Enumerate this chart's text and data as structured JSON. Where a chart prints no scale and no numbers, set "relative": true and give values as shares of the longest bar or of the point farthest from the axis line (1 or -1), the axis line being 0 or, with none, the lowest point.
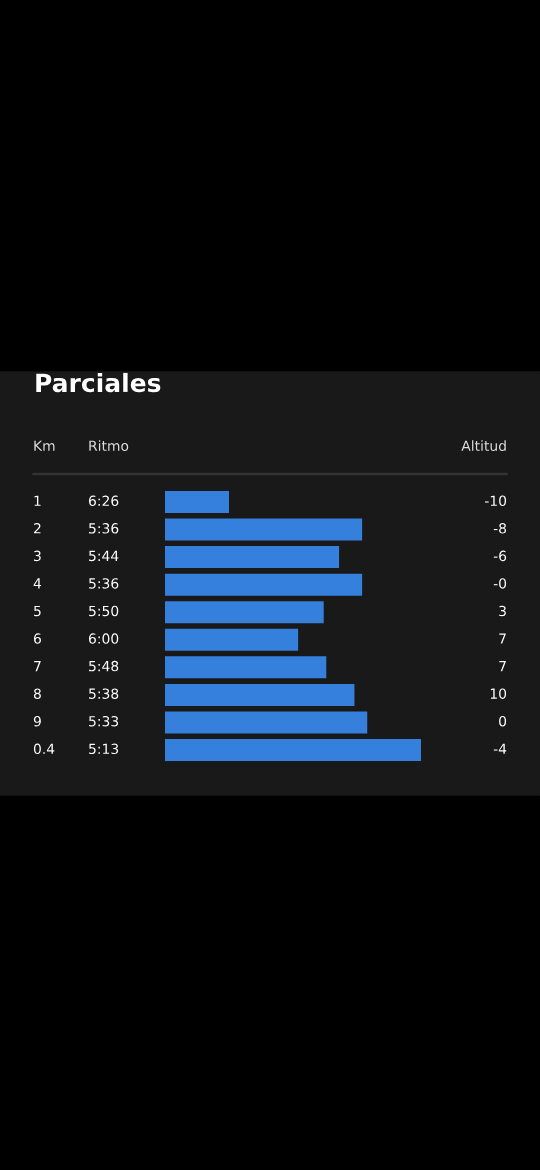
{
  "chart_data": {
    "type": "bar",
    "orientation": "horizontal",
    "relative": true,
    "title": "Parciales",
    "ylabel": "Km",
    "xlabel": "Ritmo",
    "y2label": "Altitud",
    "categories": [
      "1",
      "2",
      "3",
      "4",
      "5",
      "6",
      "7",
      "8",
      "9",
      "0.4"
    ],
    "values": [
      0.25,
      0.77,
      0.68,
      0.77,
      0.62,
      0.52,
      0.63,
      0.74,
      0.79,
      1.0
    ],
    "color": "#3580dc",
    "annotations": [
      "6:26",
      "5:36",
      "5:44",
      "5:36",
      "5:50",
      "6:00",
      "5:48",
      "5:38",
      "5:33",
      "5:13",
      "-10",
      "-8",
      "-6",
      "-0",
      "3",
      "7",
      "7",
      "10",
      "0",
      "-4"
    ]
  }
}
